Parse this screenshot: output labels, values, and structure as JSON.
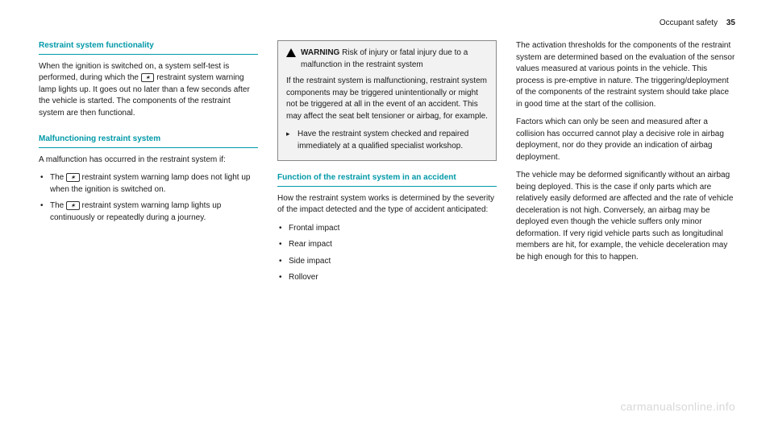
{
  "header": {
    "section": "Occupant safety",
    "page": "35"
  },
  "col1": {
    "h1": "Restraint system functionality",
    "p1a": "When the ignition is switched on, a system self-test is performed, during which the ",
    "icon1": "✶",
    "p1b": " restraint system warning lamp lights up. It goes out no later than a few seconds after the vehicle is started. The components of the restraint system are then functional.",
    "h2": "Malfunctioning restraint system",
    "p2": "A malfunction has occurred in the restraint system if:",
    "li1a": "The ",
    "li1_icon": "✶",
    "li1b": " restraint system warning lamp does not light up when the ignition is switched on.",
    "li2a": "The ",
    "li2_icon": "✶",
    "li2b": " restraint system warning lamp lights up continuously or repeatedly during a journey."
  },
  "col2": {
    "warn_label": "WARNING",
    "warn_title": " Risk of injury or fatal injury due to a malfunction in the restraint system",
    "warn_body": "If the restraint system is malfunctioning, restraint system components may be triggered unintentionally or might not be triggered at all in the event of an accident. This may affect the seat belt tensioner or airbag, for example.",
    "warn_action": "Have the restraint system checked and repaired immediately at a qualified specialist workshop.",
    "h3": "Function of the restraint system in an accident",
    "p3": "How the restraint system works is determined by the severity of the impact detected and the type of accident anticipated:",
    "bullets": [
      "Frontal impact",
      "Rear impact",
      "Side impact",
      "Rollover"
    ]
  },
  "col3": {
    "p1": "The activation thresholds for the components of the restraint system are determined based on the evaluation of the sensor values measured at various points in the vehicle. This process is pre-emptive in nature. The triggering/deployment of the components of the restraint system should take place in good time at the start of the collision.",
    "p2": "Factors which can only be seen and measured after a collision has occurred cannot play a decisive role in airbag deployment, nor do they provide an indication of airbag deployment.",
    "p3": "The vehicle may be deformed significantly without an airbag being deployed. This is the case if only parts which are relatively easily deformed are affected and the rate of vehicle deceleration is not high. Conversely, an airbag may be deployed even though the vehicle suffers only minor deformation. If very rigid vehicle parts such as longitudinal members are hit, for example, the vehicle deceleration may be high enough for this to happen."
  },
  "watermark": "carmanualsonline.info"
}
